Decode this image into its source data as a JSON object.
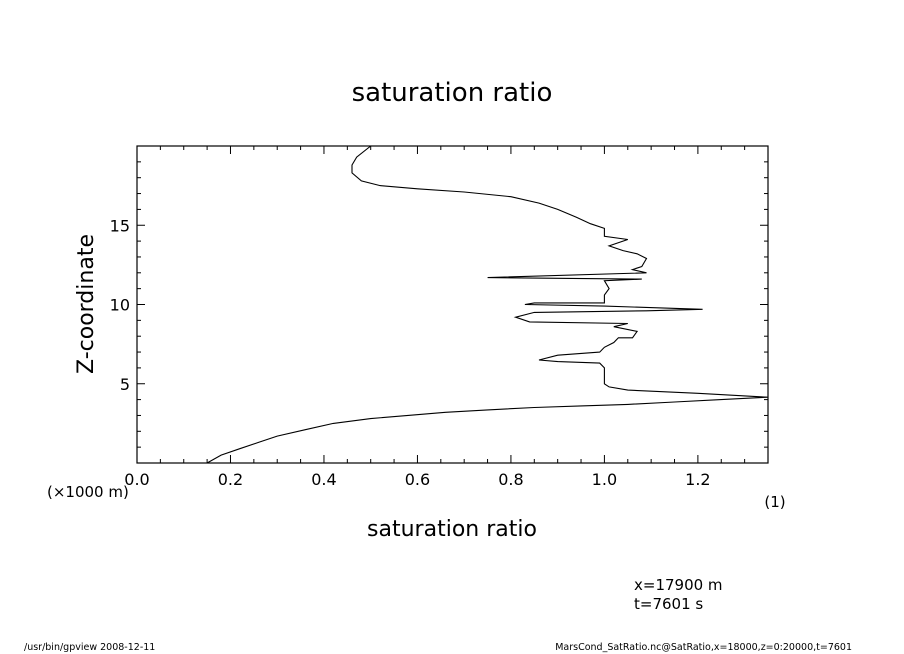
{
  "chart_data": {
    "type": "line",
    "title": "saturation ratio",
    "xlabel": "saturation ratio",
    "xunit": "(1)",
    "ylabel": "Z-coordinate",
    "yunit": "(×1000 m)",
    "xlim": [
      0.0,
      1.35
    ],
    "ylim": [
      0,
      20
    ],
    "xticks": [
      0.0,
      0.2,
      0.4,
      0.6,
      0.8,
      1.0,
      1.2
    ],
    "xtick_labels": [
      "0.0",
      "0.2",
      "0.4",
      "0.6",
      "0.8",
      "1.0",
      "1.2"
    ],
    "yticks": [
      5,
      10,
      15
    ],
    "ytick_labels": [
      "5",
      "10",
      "15"
    ],
    "grid": false,
    "series": [
      {
        "x": [
          0.15,
          0.18,
          0.22,
          0.26,
          0.3,
          0.36,
          0.42,
          0.5,
          0.58,
          0.66,
          0.75,
          0.85,
          0.95,
          1.05,
          1.15,
          1.25,
          1.35,
          1.2,
          1.05,
          1.01,
          1.0,
          1.0,
          1.0,
          0.99,
          0.9,
          0.86,
          0.9,
          0.99,
          1.0,
          1.02,
          1.03,
          1.06,
          1.07,
          1.02,
          1.05,
          0.84,
          0.81,
          0.85,
          1.09,
          1.21,
          1.0,
          0.83,
          0.85,
          1.0,
          1.0,
          1.01,
          1.0,
          1.08,
          0.75,
          1.09,
          1.06,
          1.08,
          1.09,
          1.07,
          1.04,
          1.01,
          1.05,
          1.0,
          1.0,
          0.97,
          0.94,
          0.9,
          0.86,
          0.8,
          0.7,
          0.6,
          0.52,
          0.48,
          0.46,
          0.46,
          0.47,
          0.5
        ],
        "y": [
          0.0,
          0.5,
          0.9,
          1.3,
          1.7,
          2.1,
          2.5,
          2.8,
          3.0,
          3.2,
          3.35,
          3.5,
          3.6,
          3.7,
          3.85,
          4.0,
          4.15,
          4.4,
          4.6,
          4.8,
          5.0,
          5.5,
          6.0,
          6.3,
          6.4,
          6.5,
          6.8,
          7.0,
          7.3,
          7.6,
          7.9,
          7.9,
          8.3,
          8.6,
          8.8,
          8.9,
          9.2,
          9.5,
          9.6,
          9.7,
          9.9,
          10.0,
          10.1,
          10.1,
          10.6,
          11.0,
          11.5,
          11.6,
          11.7,
          12.0,
          12.2,
          12.4,
          12.9,
          13.2,
          13.4,
          13.7,
          14.1,
          14.3,
          14.8,
          15.1,
          15.5,
          16.0,
          16.4,
          16.8,
          17.1,
          17.3,
          17.5,
          17.8,
          18.3,
          18.8,
          19.3,
          20.0
        ]
      }
    ]
  },
  "info": {
    "x_value": "x=17900  m",
    "t_value": "t=7601  s"
  },
  "footer": {
    "left": "/usr/bin/gpview   2008-12-11",
    "right": "MarsCond_SatRatio.nc@SatRatio,x=18000,z=0:20000,t=7601"
  }
}
